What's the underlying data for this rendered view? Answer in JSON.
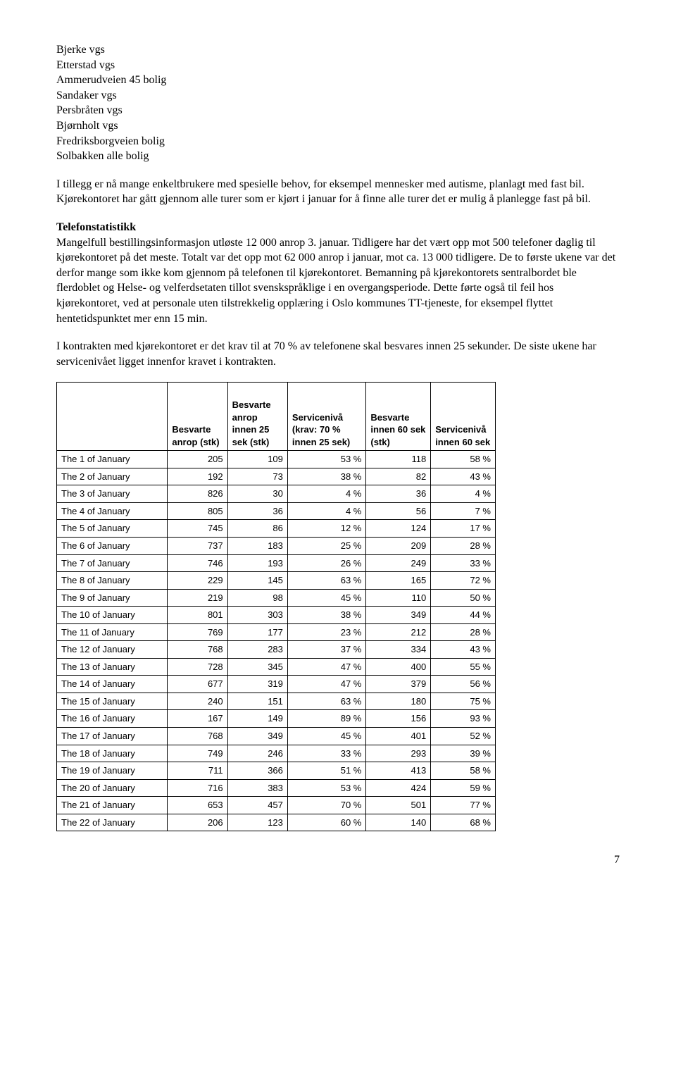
{
  "listItems": [
    "Bjerke vgs",
    "Etterstad vgs",
    "Ammerudveien 45 bolig",
    "Sandaker vgs",
    "Persbråten vgs",
    "Bjørnholt vgs",
    "Fredriksborgveien bolig",
    "Solbakken alle bolig"
  ],
  "para1": "I tillegg er nå mange enkeltbrukere med spesielle behov, for eksempel mennesker med autisme, planlagt med fast bil. Kjørekontoret har gått gjennom alle turer som er kjørt i januar for å finne alle turer det er mulig å planlegge fast på bil.",
  "heading2": "Telefonstatistikk",
  "para2": "Mangelfull bestillingsinformasjon utløste 12 000 anrop 3. januar. Tidligere har det vært opp mot 500 telefoner daglig til kjørekontoret på det meste. Totalt var det opp mot 62 000 anrop i januar, mot ca. 13 000 tidligere. De to første ukene var det derfor mange som ikke kom gjennom på telefonen til kjørekontoret. Bemanning på kjørekontorets sentralbordet ble flerdoblet og Helse- og velferdsetaten tillot svenskspråklige i en overgangsperiode. Dette førte også til feil hos kjørekontoret, ved at personale uten tilstrekkelig opplæring i Oslo kommunes TT-tjeneste, for eksempel flyttet hentetidspunktet mer enn 15 min.",
  "para3": "I kontrakten med kjørekontoret er det krav til at 70 % av telefonene skal besvares innen 25 sekunder. De siste ukene har servicenivået ligget innenfor kravet i kontrakten.",
  "table": {
    "columns": [
      "",
      "Besvarte anrop (stk)",
      "Besvarte anrop innen 25 sek (stk)",
      "Servicenivå (krav: 70 % innen 25 sek)",
      "Besvarte innen 60 sek (stk)",
      "Servicenivå innen 60 sek"
    ],
    "rows": [
      [
        "The 1 of January",
        "205",
        "109",
        "53 %",
        "118",
        "58 %"
      ],
      [
        "The 2 of January",
        "192",
        "73",
        "38 %",
        "82",
        "43 %"
      ],
      [
        "The 3 of January",
        "826",
        "30",
        "4 %",
        "36",
        "4 %"
      ],
      [
        "The 4 of January",
        "805",
        "36",
        "4 %",
        "56",
        "7 %"
      ],
      [
        "The 5 of January",
        "745",
        "86",
        "12 %",
        "124",
        "17 %"
      ],
      [
        "The 6 of January",
        "737",
        "183",
        "25 %",
        "209",
        "28 %"
      ],
      [
        "The 7 of January",
        "746",
        "193",
        "26 %",
        "249",
        "33 %"
      ],
      [
        "The 8 of January",
        "229",
        "145",
        "63 %",
        "165",
        "72 %"
      ],
      [
        "The 9 of January",
        "219",
        "98",
        "45 %",
        "110",
        "50 %"
      ],
      [
        "The 10 of January",
        "801",
        "303",
        "38 %",
        "349",
        "44 %"
      ],
      [
        "The 11 of January",
        "769",
        "177",
        "23 %",
        "212",
        "28 %"
      ],
      [
        "The 12 of January",
        "768",
        "283",
        "37 %",
        "334",
        "43 %"
      ],
      [
        "The 13 of January",
        "728",
        "345",
        "47 %",
        "400",
        "55 %"
      ],
      [
        "The 14 of January",
        "677",
        "319",
        "47 %",
        "379",
        "56 %"
      ],
      [
        "The 15 of January",
        "240",
        "151",
        "63 %",
        "180",
        "75 %"
      ],
      [
        "The 16 of January",
        "167",
        "149",
        "89 %",
        "156",
        "93 %"
      ],
      [
        "The 17 of January",
        "768",
        "349",
        "45 %",
        "401",
        "52 %"
      ],
      [
        "The 18 of January",
        "749",
        "246",
        "33 %",
        "293",
        "39 %"
      ],
      [
        "The 19 of January",
        "711",
        "366",
        "51 %",
        "413",
        "58 %"
      ],
      [
        "The 20 of January",
        "716",
        "383",
        "53 %",
        "424",
        "59 %"
      ],
      [
        "The 21 of January",
        "653",
        "457",
        "70 %",
        "501",
        "77 %"
      ],
      [
        "The 22 of January",
        "206",
        "123",
        "60 %",
        "140",
        "68 %"
      ]
    ],
    "col_widths": [
      "24%",
      "13%",
      "13%",
      "17%",
      "14%",
      "14%"
    ]
  },
  "pageNumber": "7"
}
